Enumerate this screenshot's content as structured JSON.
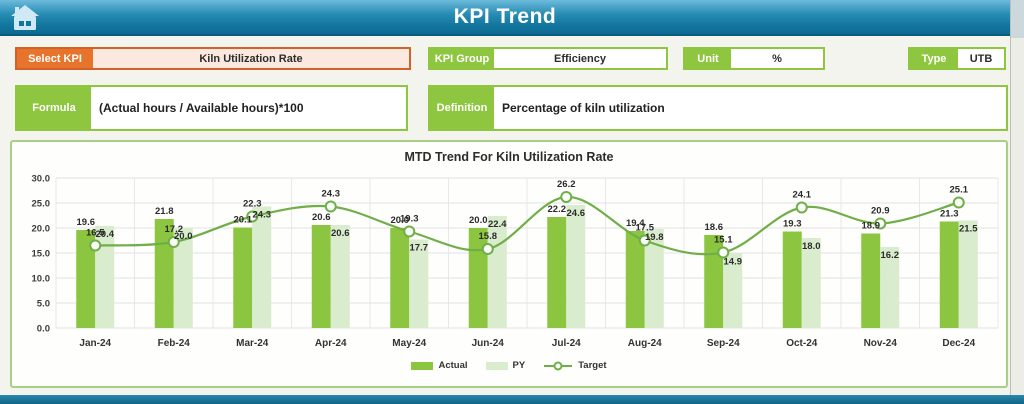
{
  "header": {
    "title": "KPI Trend"
  },
  "controls": {
    "select_kpi": {
      "label": "Select KPI",
      "value": "Kiln Utilization Rate"
    },
    "kpi_group": {
      "label": "KPI Group",
      "value": "Efficiency"
    },
    "unit": {
      "label": "Unit",
      "value": "%"
    },
    "type": {
      "label": "Type",
      "value": "UTB"
    }
  },
  "formula": {
    "label": "Formula",
    "value": "(Actual hours / Available hours)*100"
  },
  "definition": {
    "label": "Definition",
    "value": "Percentage of kiln utilization"
  },
  "icons": {
    "home": "home-icon"
  },
  "colors": {
    "header_teal": "#11759d",
    "orange_accent": "#e8742c",
    "orange_field": "#fbe9df",
    "green_accent": "#8ec63f",
    "bar_actual": "#8cc540",
    "bar_py": "#d9eccd",
    "line_target": "#6fae48",
    "grid": "#e3e3e3"
  },
  "chart_data": {
    "type": "bar",
    "title": "MTD Trend For Kiln Utilization Rate",
    "categories": [
      "Jan-24",
      "Feb-24",
      "Mar-24",
      "Apr-24",
      "May-24",
      "Jun-24",
      "Jul-24",
      "Aug-24",
      "Sep-24",
      "Oct-24",
      "Nov-24",
      "Dec-24"
    ],
    "series": [
      {
        "name": "Actual",
        "type": "bar",
        "color": "#8cc540",
        "values": [
          19.6,
          21.8,
          20.1,
          20.6,
          20.0,
          20.0,
          22.2,
          19.4,
          18.6,
          19.3,
          18.9,
          21.3
        ]
      },
      {
        "name": "PY",
        "type": "bar",
        "color": "#d9eccd",
        "values": [
          20.4,
          20.0,
          24.3,
          20.6,
          17.7,
          22.4,
          24.6,
          19.8,
          14.9,
          18.0,
          16.2,
          21.5
        ]
      },
      {
        "name": "Target",
        "type": "line",
        "color": "#6fae48",
        "values": [
          16.5,
          17.2,
          22.3,
          24.3,
          19.3,
          15.8,
          26.2,
          17.5,
          15.1,
          24.1,
          20.9,
          25.1
        ]
      }
    ],
    "xlabel": "",
    "ylabel": "",
    "ylim": [
      0,
      30
    ],
    "ytick_step": 5,
    "ytick_format": "one-decimal",
    "grid": true,
    "legend_position": "bottom"
  }
}
